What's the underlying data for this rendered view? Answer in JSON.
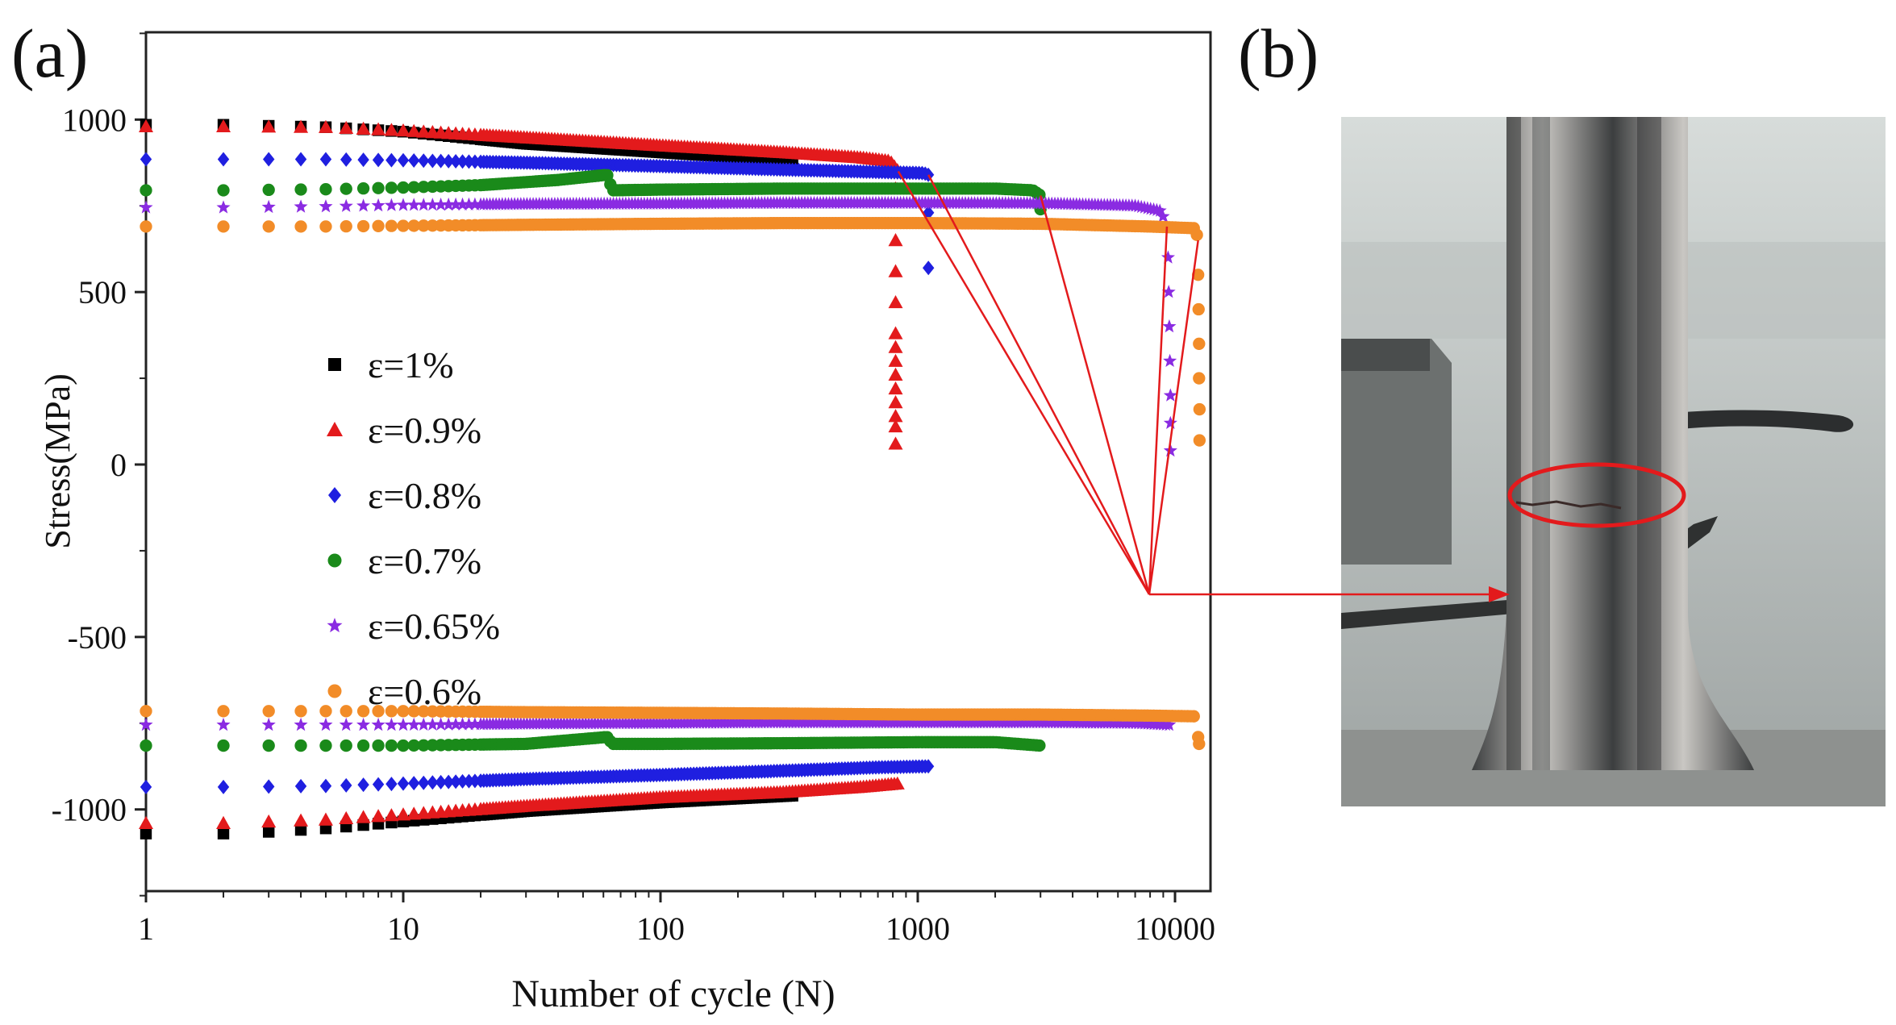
{
  "panels": {
    "a_label": "(a)",
    "b_label": "(b)"
  },
  "photo": {
    "colors": {
      "background_top": "#d7dcda",
      "background_mid": "#9da3a2",
      "rod_dark": "#3c3e3f",
      "rod_light": "#c9c7c3",
      "floor": "#8e918f",
      "marker_ellipse": "#e31a1c"
    }
  },
  "annotation": {
    "color": "#e31a1c"
  },
  "chart_data": {
    "type": "scatter",
    "xscale": "log",
    "xlabel": "Number of  cycle (N)",
    "ylabel": "Stress(MPa)",
    "xlim": [
      1,
      13500
    ],
    "ylim": [
      -1250,
      1250
    ],
    "xticks": [
      1,
      10,
      100,
      1000,
      10000
    ],
    "xtick_labels": [
      "1",
      "10",
      "100",
      "1000",
      "10000"
    ],
    "yticks": [
      -1000,
      -500,
      0,
      500,
      1000
    ],
    "ytick_labels": [
      "-1000",
      "-500",
      "0",
      "500",
      "1000"
    ],
    "legend_position": "center-left",
    "series": [
      {
        "name": "ε=1%",
        "marker": "square",
        "color": "#000000",
        "upper": [
          [
            1,
            985
          ],
          [
            2,
            985
          ],
          [
            3,
            982
          ],
          [
            5,
            978
          ],
          [
            10,
            965
          ],
          [
            30,
            930
          ],
          [
            100,
            905
          ],
          [
            330,
            880
          ]
        ],
        "lower": [
          [
            1,
            -1070
          ],
          [
            2,
            -1070
          ],
          [
            3,
            -1065
          ],
          [
            5,
            -1055
          ],
          [
            10,
            -1035
          ],
          [
            30,
            -1005
          ],
          [
            100,
            -980
          ],
          [
            330,
            -960
          ]
        ]
      },
      {
        "name": "ε=0.9%",
        "marker": "triangle",
        "color": "#e31a1c",
        "upper": [
          [
            1,
            980
          ],
          [
            2,
            980
          ],
          [
            5,
            978
          ],
          [
            10,
            968
          ],
          [
            30,
            948
          ],
          [
            100,
            925
          ],
          [
            300,
            905
          ],
          [
            600,
            890
          ],
          [
            780,
            880
          ],
          [
            840,
            850
          ]
        ],
        "lower": [
          [
            1,
            -1040
          ],
          [
            2,
            -1040
          ],
          [
            5,
            -1030
          ],
          [
            10,
            -1015
          ],
          [
            30,
            -990
          ],
          [
            100,
            -965
          ],
          [
            300,
            -950
          ],
          [
            600,
            -935
          ],
          [
            840,
            -925
          ]
        ],
        "drop": [
          [
            820,
            800
          ],
          [
            820,
            650
          ],
          [
            820,
            560
          ],
          [
            820,
            470
          ],
          [
            820,
            380
          ],
          [
            820,
            340
          ],
          [
            820,
            300
          ],
          [
            820,
            260
          ],
          [
            820,
            220
          ],
          [
            820,
            180
          ],
          [
            820,
            140
          ],
          [
            820,
            110
          ],
          [
            820,
            60
          ]
        ]
      },
      {
        "name": "ε=0.8%",
        "marker": "diamond",
        "color": "#1f1fe0",
        "upper": [
          [
            1,
            885
          ],
          [
            2,
            885
          ],
          [
            5,
            885
          ],
          [
            10,
            882
          ],
          [
            30,
            875
          ],
          [
            100,
            865
          ],
          [
            300,
            855
          ],
          [
            700,
            848
          ],
          [
            1050,
            845
          ],
          [
            1100,
            840
          ]
        ],
        "lower": [
          [
            1,
            -935
          ],
          [
            2,
            -935
          ],
          [
            5,
            -932
          ],
          [
            10,
            -925
          ],
          [
            30,
            -912
          ],
          [
            100,
            -900
          ],
          [
            300,
            -888
          ],
          [
            700,
            -878
          ],
          [
            1100,
            -875
          ]
        ],
        "drop": [
          [
            1100,
            730
          ],
          [
            1100,
            570
          ]
        ]
      },
      {
        "name": "ε=0.7%",
        "marker": "circle",
        "color": "#1a8a1a",
        "upper": [
          [
            1,
            795
          ],
          [
            2,
            795
          ],
          [
            5,
            798
          ],
          [
            10,
            803
          ],
          [
            20,
            810
          ],
          [
            40,
            825
          ],
          [
            62,
            840
          ],
          [
            65,
            795
          ],
          [
            100,
            797
          ],
          [
            300,
            800
          ],
          [
            1000,
            800
          ],
          [
            2000,
            800
          ],
          [
            2800,
            795
          ],
          [
            3000,
            780
          ]
        ],
        "lower": [
          [
            1,
            -815
          ],
          [
            2,
            -815
          ],
          [
            5,
            -815
          ],
          [
            10,
            -815
          ],
          [
            30,
            -810
          ],
          [
            62,
            -790
          ],
          [
            65,
            -810
          ],
          [
            100,
            -810
          ],
          [
            300,
            -808
          ],
          [
            1000,
            -805
          ],
          [
            2000,
            -805
          ],
          [
            3000,
            -815
          ]
        ],
        "drop": [
          [
            3000,
            740
          ]
        ]
      },
      {
        "name": "ε=0.65%",
        "marker": "star",
        "color": "#8a2be2",
        "upper": [
          [
            1,
            745
          ],
          [
            2,
            745
          ],
          [
            5,
            748
          ],
          [
            10,
            752
          ],
          [
            30,
            755
          ],
          [
            100,
            756
          ],
          [
            300,
            758
          ],
          [
            1000,
            758
          ],
          [
            3000,
            757
          ],
          [
            7000,
            750
          ],
          [
            8800,
            735
          ],
          [
            9300,
            690
          ]
        ],
        "lower": [
          [
            1,
            -755
          ],
          [
            2,
            -755
          ],
          [
            5,
            -755
          ],
          [
            10,
            -755
          ],
          [
            30,
            -752
          ],
          [
            100,
            -750
          ],
          [
            300,
            -748
          ],
          [
            1000,
            -748
          ],
          [
            3000,
            -748
          ],
          [
            7000,
            -750
          ],
          [
            9500,
            -755
          ]
        ],
        "drop": [
          [
            9400,
            600
          ],
          [
            9450,
            500
          ],
          [
            9500,
            400
          ],
          [
            9550,
            300
          ],
          [
            9600,
            200
          ],
          [
            9600,
            120
          ],
          [
            9600,
            40
          ]
        ]
      },
      {
        "name": "ε=0.6%",
        "marker": "circle",
        "color": "#f28c28",
        "upper": [
          [
            1,
            690
          ],
          [
            2,
            690
          ],
          [
            5,
            690
          ],
          [
            10,
            692
          ],
          [
            30,
            695
          ],
          [
            100,
            698
          ],
          [
            300,
            700
          ],
          [
            1000,
            700
          ],
          [
            3000,
            698
          ],
          [
            8000,
            690
          ],
          [
            12000,
            685
          ],
          [
            12300,
            650
          ]
        ],
        "lower": [
          [
            1,
            -715
          ],
          [
            2,
            -715
          ],
          [
            5,
            -715
          ],
          [
            10,
            -715
          ],
          [
            30,
            -718
          ],
          [
            100,
            -720
          ],
          [
            300,
            -722
          ],
          [
            1000,
            -725
          ],
          [
            3000,
            -725
          ],
          [
            8000,
            -728
          ],
          [
            12000,
            -730
          ]
        ],
        "drop": [
          [
            12300,
            550
          ],
          [
            12350,
            450
          ],
          [
            12400,
            350
          ],
          [
            12400,
            250
          ],
          [
            12450,
            160
          ],
          [
            12450,
            70
          ],
          [
            12300,
            -790
          ],
          [
            12400,
            -810
          ]
        ]
      }
    ]
  }
}
